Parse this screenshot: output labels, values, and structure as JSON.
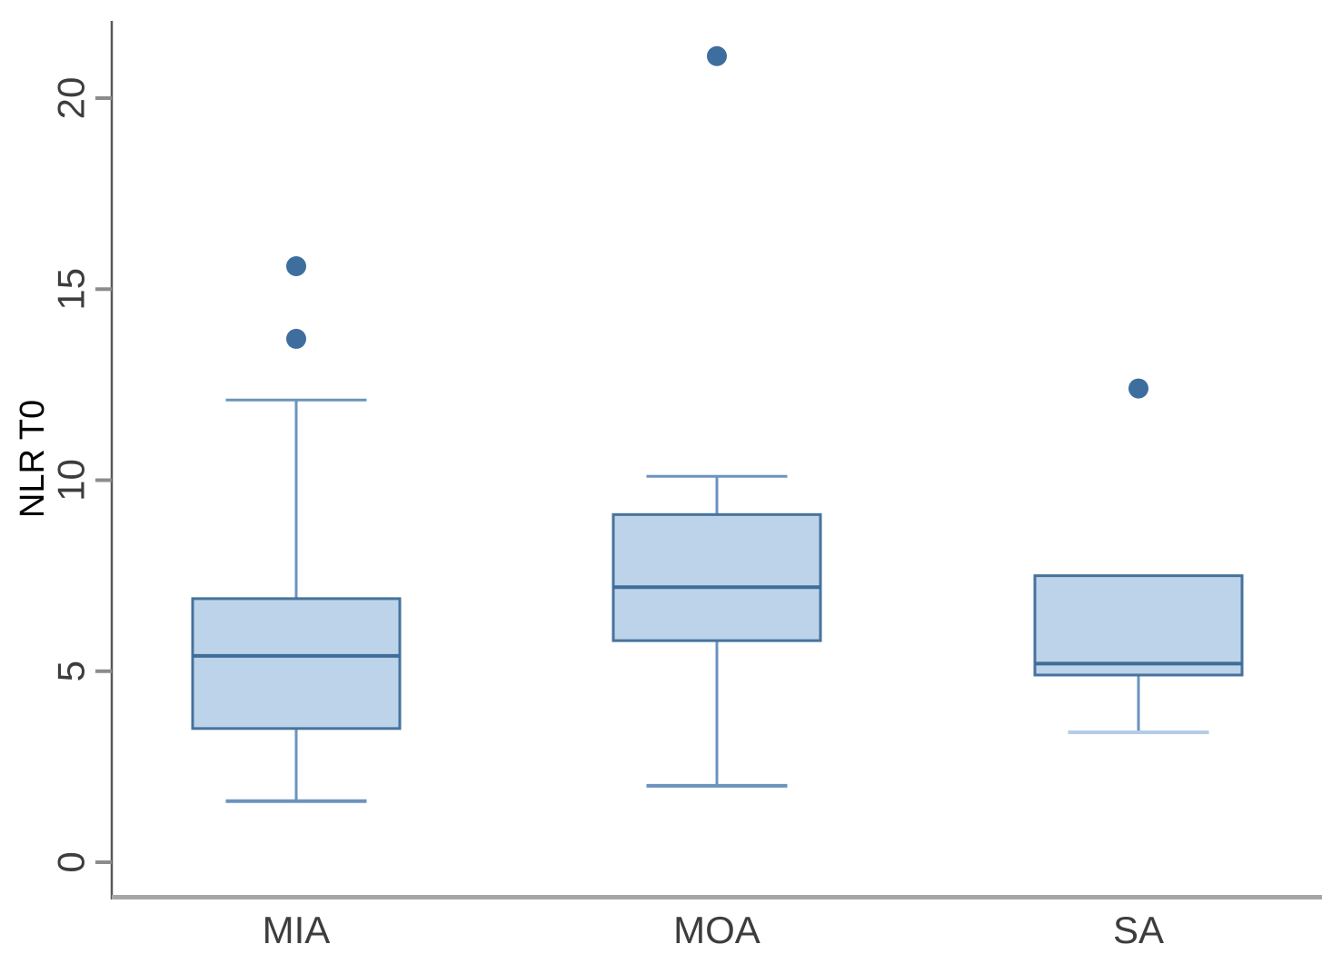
{
  "figure": {
    "background": "#FFFFFF"
  },
  "chart_data": {
    "type": "boxplot",
    "title": "",
    "xlabel": "",
    "ylabel": "NLR T0",
    "categories": [
      "MIA",
      "MOA",
      "SA"
    ],
    "yticks": [
      0,
      5,
      10,
      15,
      20
    ],
    "ylim": [
      0,
      22
    ],
    "grid": false,
    "legend": "none",
    "series": [
      {
        "category": "MIA",
        "whisker_low": 1.6,
        "q1": 3.5,
        "median": 5.4,
        "q3": 6.9,
        "whisker_high": 12.1,
        "outliers": [
          13.7,
          15.6
        ]
      },
      {
        "category": "MOA",
        "whisker_low": 2.0,
        "q1": 5.8,
        "median": 7.2,
        "q3": 9.1,
        "whisker_high": 10.1,
        "outliers": [
          21.1
        ]
      },
      {
        "category": "SA",
        "whisker_low": 3.4,
        "q1": 4.9,
        "median": 5.2,
        "q3": 7.5,
        "whisker_high": null,
        "outliers": [
          12.4
        ]
      }
    ],
    "colors": {
      "box_fill": "#BDD3E9",
      "box_border": "#46739D",
      "median_line": "#3F6D99",
      "whisker": "#6B94BE",
      "sa_low_cap": "#B4CCE6",
      "outlier": "#3D6E9E",
      "y_axis_line": "#595959",
      "x_axis_line": "#A6A6A6",
      "tick_mark": "#8C8C8C",
      "label_text": "#3D3D3D"
    }
  }
}
